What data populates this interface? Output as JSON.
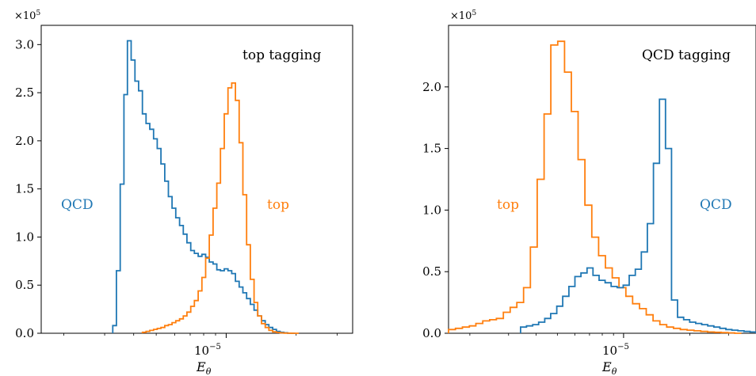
{
  "chart_data": [
    {
      "type": "step-histogram",
      "panel": "left",
      "title": "top tagging",
      "xlabel": "E_θ",
      "ylabel": "",
      "y_multiplier": "×10^5",
      "x_scale": "log",
      "x_ticks": [
        {
          "value": 1e-05,
          "label": "10^−5"
        }
      ],
      "xlim": [
        1.6e-06,
        3.5e-05
      ],
      "ylim": [
        0,
        3.2
      ],
      "y_ticks": [
        0.0,
        0.5,
        1.0,
        1.5,
        2.0,
        2.5,
        3.0
      ],
      "series": [
        {
          "label": "QCD",
          "color": "#1f77b4",
          "x": [
            3.25e-06,
            3.37e-06,
            3.5e-06,
            3.63e-06,
            3.76e-06,
            3.9e-06,
            4.05e-06,
            4.2e-06,
            4.36e-06,
            4.52e-06,
            4.69e-06,
            4.87e-06,
            5.05e-06,
            5.24e-06,
            5.44e-06,
            5.64e-06,
            5.85e-06,
            6.07e-06,
            6.3e-06,
            6.54e-06,
            6.78e-06,
            7.04e-06,
            7.3e-06,
            7.58e-06,
            7.86e-06,
            8.16e-06,
            8.46e-06,
            8.78e-06,
            9.11e-06,
            9.45e-06,
            9.81e-06,
            1.018e-05,
            1.056e-05,
            1.096e-05,
            1.137e-05,
            1.18e-05,
            1.224e-05,
            1.27e-05,
            1.318e-05,
            1.367e-05,
            1.419e-05,
            1.472e-05,
            1.527e-05,
            1.585e-05,
            1.645e-05,
            1.706e-05,
            1.77e-05,
            1.837e-05,
            1.906e-05
          ],
          "values": [
            0.08,
            0.65,
            1.55,
            2.48,
            3.04,
            2.84,
            2.62,
            2.52,
            2.28,
            2.18,
            2.12,
            2.02,
            1.92,
            1.76,
            1.58,
            1.42,
            1.3,
            1.2,
            1.12,
            1.03,
            0.94,
            0.86,
            0.83,
            0.8,
            0.82,
            0.79,
            0.74,
            0.72,
            0.66,
            0.65,
            0.67,
            0.65,
            0.62,
            0.54,
            0.48,
            0.42,
            0.36,
            0.3,
            0.24,
            0.18,
            0.13,
            0.09,
            0.06,
            0.04,
            0.02,
            0.01,
            0.005,
            0.0,
            0.0
          ]
        },
        {
          "label": "top",
          "color": "#ff7f0e",
          "x": [
            4.36e-06,
            4.52e-06,
            4.69e-06,
            4.87e-06,
            5.05e-06,
            5.24e-06,
            5.44e-06,
            5.64e-06,
            5.85e-06,
            6.07e-06,
            6.3e-06,
            6.54e-06,
            6.78e-06,
            7.04e-06,
            7.3e-06,
            7.58e-06,
            7.86e-06,
            8.16e-06,
            8.46e-06,
            8.78e-06,
            9.11e-06,
            9.45e-06,
            9.81e-06,
            1.018e-05,
            1.056e-05,
            1.096e-05,
            1.137e-05,
            1.18e-05,
            1.224e-05,
            1.27e-05,
            1.318e-05,
            1.367e-05,
            1.419e-05,
            1.472e-05,
            1.527e-05,
            1.585e-05,
            1.645e-05,
            1.706e-05,
            1.77e-05,
            1.837e-05,
            1.906e-05,
            1.977e-05
          ],
          "values": [
            0.01,
            0.02,
            0.03,
            0.04,
            0.05,
            0.06,
            0.08,
            0.09,
            0.11,
            0.13,
            0.15,
            0.18,
            0.22,
            0.28,
            0.34,
            0.44,
            0.58,
            0.78,
            1.02,
            1.3,
            1.56,
            1.92,
            2.28,
            2.55,
            2.6,
            2.42,
            1.98,
            1.44,
            0.92,
            0.56,
            0.32,
            0.18,
            0.1,
            0.06,
            0.03,
            0.015,
            0.008,
            0.004,
            0.002,
            0.001,
            0.0,
            0.0
          ]
        }
      ],
      "annotations": [
        {
          "text": "top tagging",
          "color": "#000000"
        },
        {
          "text": "QCD",
          "color": "#1f77b4"
        },
        {
          "text": "top",
          "color": "#ff7f0e"
        }
      ],
      "grid": false,
      "legend": "none"
    },
    {
      "type": "step-histogram",
      "panel": "right",
      "title": "QCD tagging",
      "xlabel": "E_θ",
      "ylabel": "",
      "y_multiplier": "×10^5",
      "x_scale": "log",
      "x_ticks": [
        {
          "value": 1e-05,
          "label": "10^−5"
        }
      ],
      "xlim": [
        1.6e-06,
        4e-05
      ],
      "ylim": [
        0,
        2.5
      ],
      "y_ticks": [
        0.0,
        0.5,
        1.0,
        1.5,
        2.0
      ],
      "series": [
        {
          "label": "top",
          "color": "#ff7f0e",
          "x": [
            1.6e-06,
            1.72e-06,
            1.85e-06,
            1.99e-06,
            2.13e-06,
            2.29e-06,
            2.46e-06,
            2.64e-06,
            2.84e-06,
            3.05e-06,
            3.27e-06,
            3.51e-06,
            3.77e-06,
            4.05e-06,
            4.35e-06,
            4.67e-06,
            5.02e-06,
            5.39e-06,
            5.79e-06,
            6.21e-06,
            6.67e-06,
            7.17e-06,
            7.7e-06,
            8.27e-06,
            8.88e-06,
            9.53e-06,
            1.024e-05,
            1.099e-05,
            1.181e-05,
            1.268e-05,
            1.362e-05,
            1.462e-05,
            1.57e-05,
            1.686e-05,
            1.811e-05,
            1.945e-05,
            2.089e-05,
            2.243e-05,
            2.409e-05,
            2.587e-05,
            2.778e-05,
            2.983e-05,
            3.2e-05
          ],
          "values": [
            0.03,
            0.04,
            0.05,
            0.06,
            0.08,
            0.1,
            0.11,
            0.12,
            0.17,
            0.21,
            0.25,
            0.37,
            0.7,
            1.25,
            1.78,
            2.34,
            2.37,
            2.12,
            1.8,
            1.41,
            1.04,
            0.78,
            0.63,
            0.53,
            0.45,
            0.37,
            0.3,
            0.24,
            0.2,
            0.15,
            0.1,
            0.07,
            0.05,
            0.04,
            0.03,
            0.025,
            0.02,
            0.015,
            0.01,
            0.008,
            0.005,
            0.003,
            0.0
          ]
        },
        {
          "label": "QCD",
          "color": "#1f77b4",
          "x": [
            3.4e-06,
            3.62e-06,
            3.86e-06,
            4.11e-06,
            4.38e-06,
            4.66e-06,
            4.97e-06,
            5.29e-06,
            5.64e-06,
            6.01e-06,
            6.4e-06,
            6.82e-06,
            7.26e-06,
            7.74e-06,
            8.24e-06,
            8.78e-06,
            9.35e-06,
            9.96e-06,
            1.061e-05,
            1.131e-05,
            1.204e-05,
            1.283e-05,
            1.367e-05,
            1.456e-05,
            1.551e-05,
            1.652e-05,
            1.76e-05,
            1.875e-05,
            1.997e-05,
            2.128e-05,
            2.266e-05,
            2.414e-05,
            2.572e-05,
            2.74e-05,
            2.919e-05,
            3.109e-05,
            3.312e-05,
            3.528e-05,
            3.759e-05,
            4e-05
          ],
          "values": [
            0.05,
            0.06,
            0.07,
            0.09,
            0.12,
            0.16,
            0.22,
            0.3,
            0.38,
            0.46,
            0.49,
            0.53,
            0.47,
            0.43,
            0.41,
            0.38,
            0.37,
            0.39,
            0.47,
            0.52,
            0.66,
            0.89,
            1.38,
            1.9,
            1.5,
            0.27,
            0.13,
            0.11,
            0.09,
            0.08,
            0.07,
            0.06,
            0.05,
            0.04,
            0.03,
            0.025,
            0.02,
            0.015,
            0.01,
            0.005
          ]
        }
      ],
      "annotations": [
        {
          "text": "QCD tagging",
          "color": "#000000"
        },
        {
          "text": "top",
          "color": "#ff7f0e"
        },
        {
          "text": "QCD",
          "color": "#1f77b4"
        }
      ],
      "grid": false,
      "legend": "none"
    }
  ],
  "panels": [
    {
      "title": "top tagging",
      "xlabel": "E",
      "xlabel_sub": "θ",
      "multiplier_base": "×10",
      "multiplier_exp": "5",
      "xtick_base": "10",
      "xtick_exp": "−5",
      "label_qcd": "QCD",
      "label_top": "top",
      "yticks": [
        "0.0",
        "0.5",
        "1.0",
        "1.5",
        "2.0",
        "2.5",
        "3.0"
      ]
    },
    {
      "title": "QCD tagging",
      "xlabel": "E",
      "xlabel_sub": "θ",
      "multiplier_base": "×10",
      "multiplier_exp": "5",
      "xtick_base": "10",
      "xtick_exp": "−5",
      "label_qcd": "QCD",
      "label_top": "top",
      "yticks": [
        "0.0",
        "0.5",
        "1.0",
        "1.5",
        "2.0"
      ]
    }
  ]
}
